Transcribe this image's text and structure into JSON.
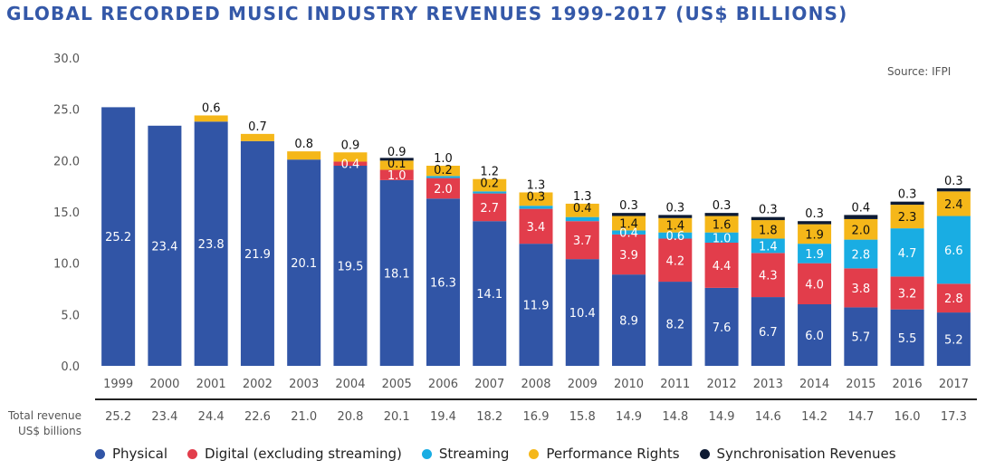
{
  "title": "GLOBAL RECORDED MUSIC INDUSTRY REVENUES 1999-2017 (US$ BILLIONS)",
  "source": "Source: IFPI",
  "total_label": {
    "line1": "Total revenue",
    "line2": "US$ billions"
  },
  "colors": {
    "physical": "#3155a6",
    "digital": "#e23d4b",
    "streaming": "#19ade3",
    "performance": "#f5b719",
    "sync": "#0d1a33",
    "title": "#3458a8"
  },
  "chart_data": {
    "type": "bar",
    "stacked": true,
    "title": "GLOBAL RECORDED MUSIC INDUSTRY REVENUES 1999-2017 (US$ BILLIONS)",
    "xlabel": "",
    "ylabel": "",
    "ylim": [
      0,
      30
    ],
    "yticks": [
      "0.0",
      "5.0",
      "10.0",
      "15.0",
      "20.0",
      "25.0",
      "30.0"
    ],
    "grid": false,
    "legend_position": "bottom",
    "categories": [
      "1999",
      "2000",
      "2001",
      "2002",
      "2003",
      "2004",
      "2005",
      "2006",
      "2007",
      "2008",
      "2009",
      "2010",
      "2011",
      "2012",
      "2013",
      "2014",
      "2015",
      "2016",
      "2017"
    ],
    "series": [
      {
        "name": "Physical",
        "key": "physical",
        "values": [
          25.2,
          23.4,
          23.8,
          21.9,
          20.1,
          19.5,
          18.1,
          16.3,
          14.1,
          11.9,
          10.4,
          8.9,
          8.2,
          7.6,
          6.7,
          6.0,
          5.7,
          5.5,
          5.2
        ]
      },
      {
        "name": "Digital (excluding streaming)",
        "key": "digital",
        "values": [
          null,
          null,
          null,
          null,
          null,
          0.4,
          1.0,
          2.0,
          2.7,
          3.4,
          3.7,
          3.9,
          4.2,
          4.4,
          4.3,
          4.0,
          3.8,
          3.2,
          2.8
        ]
      },
      {
        "name": "Streaming",
        "key": "streaming",
        "values": [
          null,
          null,
          null,
          null,
          null,
          null,
          null,
          0.2,
          0.2,
          0.3,
          0.4,
          0.4,
          0.6,
          1.0,
          1.4,
          1.9,
          2.8,
          4.7,
          6.6
        ]
      },
      {
        "name": "Performance Rights",
        "key": "performance",
        "values": [
          null,
          null,
          0.6,
          0.7,
          0.8,
          0.9,
          0.9,
          1.0,
          1.2,
          1.3,
          1.3,
          1.4,
          1.4,
          1.6,
          1.8,
          1.9,
          2.0,
          2.3,
          2.4
        ]
      },
      {
        "name": "Synchronisation Revenues",
        "key": "sync",
        "values": [
          null,
          null,
          null,
          null,
          null,
          null,
          0.1,
          null,
          null,
          null,
          null,
          0.3,
          0.3,
          0.3,
          0.3,
          0.3,
          0.4,
          0.3,
          0.3
        ]
      }
    ],
    "totals": [
      "25.2",
      "23.4",
      "24.4",
      "22.6",
      "21.0",
      "20.8",
      "20.1",
      "19.4",
      "18.2",
      "16.9",
      "15.8",
      "14.9",
      "14.8",
      "14.9",
      "14.6",
      "14.2",
      "14.7",
      "16.0",
      "17.3"
    ],
    "labels": [
      {
        "physical": "25.2"
      },
      {
        "physical": "23.4"
      },
      {
        "physical": "23.8",
        "top": [
          "0.6"
        ]
      },
      {
        "physical": "21.9",
        "top": [
          "0.7"
        ]
      },
      {
        "physical": "20.1",
        "top": [
          "0.8"
        ]
      },
      {
        "physical": "19.5",
        "digital": "0.4",
        "top": [
          "0.9"
        ]
      },
      {
        "physical": "18.1",
        "digital": "1.0",
        "top": [
          "0.9",
          "0.1"
        ]
      },
      {
        "physical": "16.3",
        "digital": "2.0",
        "top": [
          "1.0",
          "0.2"
        ]
      },
      {
        "physical": "14.1",
        "digital": "2.7",
        "top": [
          "1.2",
          "0.2"
        ]
      },
      {
        "physical": "11.9",
        "digital": "3.4",
        "top": [
          "1.3",
          "0.3"
        ]
      },
      {
        "physical": "10.4",
        "digital": "3.7",
        "top": [
          "1.3",
          "0.4"
        ]
      },
      {
        "physical": "8.9",
        "digital": "3.9",
        "streaming": "0.4",
        "performance": "1.4",
        "top": [
          "0.3"
        ]
      },
      {
        "physical": "8.2",
        "digital": "4.2",
        "streaming": "0.6",
        "performance": "1.4",
        "top": [
          "0.3"
        ]
      },
      {
        "physical": "7.6",
        "digital": "4.4",
        "streaming": "1.0",
        "performance": "1.6",
        "top": [
          "0.3"
        ]
      },
      {
        "physical": "6.7",
        "digital": "4.3",
        "streaming": "1.4",
        "performance": "1.8",
        "top": [
          "0.3"
        ]
      },
      {
        "physical": "6.0",
        "digital": "4.0",
        "streaming": "1.9",
        "performance": "1.9",
        "top": [
          "0.3"
        ]
      },
      {
        "physical": "5.7",
        "digital": "3.8",
        "streaming": "2.8",
        "performance": "2.0",
        "top": [
          "0.4"
        ]
      },
      {
        "physical": "5.5",
        "digital": "3.2",
        "streaming": "4.7",
        "performance": "2.3",
        "top": [
          "0.3"
        ]
      },
      {
        "physical": "5.2",
        "digital": "2.8",
        "streaming": "6.6",
        "performance": "2.4",
        "top": [
          "0.3"
        ]
      }
    ]
  }
}
